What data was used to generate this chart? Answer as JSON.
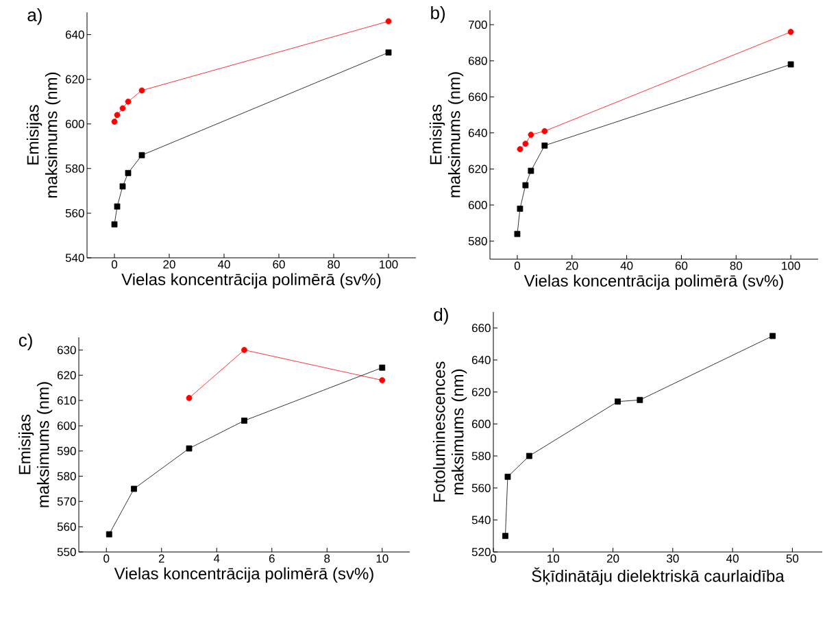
{
  "chart_data": [
    {
      "type": "line",
      "title": "a)",
      "xlabel": "Vielas koncentrācija polimērā (sv%)",
      "ylabel": "Emisijas maksimums (nm)",
      "xlim": [
        -10,
        110
      ],
      "ylim": [
        540,
        650
      ],
      "xticks": [
        0,
        20,
        40,
        60,
        80,
        100
      ],
      "yticks": [
        540,
        560,
        580,
        600,
        620,
        640
      ],
      "series": [
        {
          "color": "#000000",
          "marker": "square",
          "x": [
            0,
            1,
            3,
            5,
            10,
            100
          ],
          "values": [
            555,
            563,
            572,
            578,
            586,
            632
          ]
        },
        {
          "color": "#ff0000",
          "marker": "circle",
          "x": [
            0,
            1,
            3,
            5,
            10,
            100
          ],
          "values": [
            601,
            604,
            607,
            610,
            615,
            646
          ]
        }
      ]
    },
    {
      "type": "line",
      "title": "b)",
      "xlabel": "Vielas koncentrācija polimērā (sv%)",
      "ylabel": "Emisijas maksimums (nm)",
      "xlim": [
        -10,
        110
      ],
      "ylim": [
        570,
        708
      ],
      "xticks": [
        0,
        20,
        40,
        60,
        80,
        100
      ],
      "yticks": [
        580,
        600,
        620,
        640,
        660,
        680,
        700
      ],
      "series": [
        {
          "color": "#000000",
          "marker": "square",
          "x": [
            0,
            1,
            3,
            5,
            10,
            100
          ],
          "values": [
            584,
            598,
            611,
            619,
            633,
            678
          ]
        },
        {
          "color": "#ff0000",
          "marker": "circle",
          "x": [
            1,
            3,
            5,
            10,
            100
          ],
          "values": [
            631,
            634,
            639,
            641,
            696
          ]
        }
      ]
    },
    {
      "type": "line",
      "title": "c)",
      "xlabel": "Vielas koncentrācija polimērā (sv%)",
      "ylabel": "Emisijas maksimums (nm)",
      "xlim": [
        -1,
        11
      ],
      "ylim": [
        550,
        635
      ],
      "xticks": [
        0,
        2,
        4,
        6,
        8,
        10
      ],
      "yticks": [
        550,
        560,
        570,
        580,
        590,
        600,
        610,
        620,
        630
      ],
      "series": [
        {
          "color": "#000000",
          "marker": "square",
          "x": [
            0.1,
            1,
            3,
            5,
            10
          ],
          "values": [
            557,
            575,
            591,
            602,
            623
          ]
        },
        {
          "color": "#ff0000",
          "marker": "circle",
          "x": [
            3,
            5,
            10
          ],
          "values": [
            611,
            630,
            618
          ]
        }
      ]
    },
    {
      "type": "line",
      "title": "d)",
      "xlabel": "Šķīdinātāju dielektriskā caurlaidība",
      "ylabel": "Fotoluminescences maksimums (nm)",
      "xlim": [
        0,
        55
      ],
      "ylim": [
        520,
        670
      ],
      "xticks": [
        0,
        10,
        20,
        30,
        40,
        50
      ],
      "yticks": [
        520,
        540,
        560,
        580,
        600,
        620,
        640,
        660
      ],
      "series": [
        {
          "color": "#000000",
          "marker": "square",
          "x": [
            2,
            2.4,
            6,
            20.8,
            24.5,
            46.7
          ],
          "values": [
            530,
            567,
            580,
            614,
            615,
            655
          ]
        }
      ]
    }
  ]
}
